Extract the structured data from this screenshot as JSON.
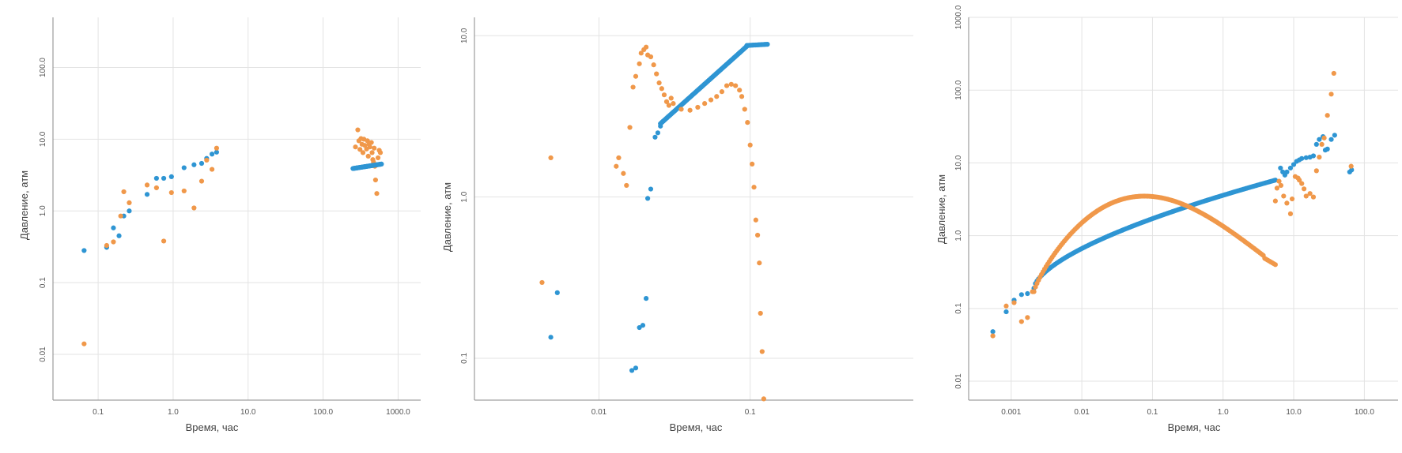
{
  "colors": {
    "series1": "#2e95d3",
    "series2": "#f0984a",
    "grid": "#e3e3e3",
    "axis": "#888888"
  },
  "chart_data": [
    {
      "type": "scatter",
      "xlabel": "Время, час",
      "ylabel": "Давление, атм",
      "x_scale": "log",
      "y_scale": "log",
      "xlim": [
        0.025,
        2000
      ],
      "ylim": [
        0.0023,
        500
      ],
      "x_ticks": [
        0.1,
        1,
        10,
        100,
        1000
      ],
      "x_tick_labels": [
        "0.1",
        "1.0",
        "10.0",
        "100.0",
        "1000.0"
      ],
      "y_ticks": [
        0.01,
        0.1,
        1,
        10,
        100
      ],
      "y_tick_labels": [
        "0.01",
        "0.1",
        "1.0",
        "10.0",
        "100.0"
      ],
      "grid": true,
      "series": [
        {
          "color": "#2e95d3",
          "x": [
            0.065,
            0.13,
            0.16,
            0.19,
            0.22,
            0.26,
            0.45,
            0.6,
            0.75,
            0.95,
            1.4,
            1.9,
            2.4,
            2.8,
            3.3,
            3.8
          ],
          "y": [
            0.28,
            0.31,
            0.58,
            0.45,
            0.85,
            1.0,
            1.7,
            2.85,
            2.85,
            3.0,
            4.0,
            4.4,
            4.6,
            5.4,
            6.2,
            6.6
          ]
        },
        {
          "color": "#f0984a",
          "x": [
            0.065,
            0.13,
            0.16,
            0.2,
            0.22,
            0.26,
            0.45,
            0.6,
            0.75,
            0.95,
            1.4,
            1.9,
            2.4,
            2.8,
            3.3,
            3.8,
            270,
            290,
            300,
            310,
            320,
            330,
            340,
            350,
            360,
            380,
            390,
            400,
            410,
            420,
            440,
            450,
            460,
            470,
            480,
            490,
            500,
            520,
            540,
            560,
            580
          ],
          "y": [
            0.014,
            0.33,
            0.37,
            0.85,
            1.85,
            1.3,
            2.3,
            2.1,
            0.38,
            1.8,
            1.9,
            1.1,
            2.6,
            5.1,
            3.8,
            7.5,
            7.8,
            13.5,
            9.5,
            7.2,
            10.2,
            8.5,
            6.5,
            10,
            8.2,
            7.3,
            9.5,
            5.8,
            8.5,
            7.8,
            9,
            6.5,
            5.2,
            4.8,
            7.5,
            4.2,
            2.7,
            1.75,
            5.5,
            7,
            6.5
          ]
        },
        {
          "color": "#2e95d3",
          "x_from": 250,
          "x_to": 600,
          "y_from": 3.9,
          "y_to": 4.5,
          "points": 60
        }
      ]
    },
    {
      "type": "scatter",
      "xlabel": "Время, час",
      "ylabel": "Давление, атм",
      "x_scale": "log",
      "y_scale": "log",
      "xlim": [
        0.0015,
        1.2
      ],
      "ylim": [
        0.055,
        13
      ],
      "x_ticks": [
        0.01,
        0.1
      ],
      "x_tick_labels": [
        "0.01",
        "0.1"
      ],
      "y_ticks": [
        0.1,
        1,
        10
      ],
      "y_tick_labels": [
        "0.1",
        "1.0",
        "10.0"
      ],
      "grid": true,
      "series": [
        {
          "color": "#2e95d3",
          "x": [
            0.0048,
            0.0053,
            0.0165,
            0.0175,
            0.0185,
            0.0195,
            0.0205,
            0.021,
            0.022,
            0.0235,
            0.0245,
            0.0255
          ],
          "y": [
            0.135,
            0.255,
            0.084,
            0.087,
            0.155,
            0.16,
            0.235,
            0.98,
            1.12,
            2.35,
            2.5,
            2.75
          ]
        },
        {
          "color": "#2e95d3",
          "x_from": 0.0255,
          "x_to": 0.095,
          "y_from": 2.85,
          "y_to": 8.6,
          "points": 90
        },
        {
          "color": "#2e95d3",
          "x_from": 0.095,
          "x_to": 0.13,
          "y_from": 8.7,
          "y_to": 8.85,
          "points": 20
        },
        {
          "color": "#f0984a",
          "x": [
            0.0042,
            0.0048,
            0.013,
            0.0135,
            0.0145,
            0.0152,
            0.016,
            0.0168,
            0.0175,
            0.0185,
            0.019,
            0.0198,
            0.0205,
            0.021,
            0.022,
            0.023,
            0.024,
            0.025,
            0.026,
            0.027,
            0.028,
            0.029,
            0.03
          ],
          "y": [
            0.295,
            1.75,
            1.55,
            1.75,
            1.4,
            1.18,
            2.7,
            4.8,
            5.6,
            6.7,
            7.8,
            8.2,
            8.5,
            7.6,
            7.4,
            6.6,
            5.8,
            5.1,
            4.7,
            4.3,
            3.9,
            3.7,
            4.1
          ]
        },
        {
          "color": "#f0984a",
          "x": [
            0.031,
            0.035,
            0.04,
            0.045,
            0.05,
            0.055,
            0.06,
            0.065,
            0.07,
            0.075,
            0.08,
            0.085,
            0.088,
            0.092,
            0.096,
            0.1,
            0.103,
            0.106,
            0.109,
            0.112,
            0.115,
            0.117,
            0.12,
            0.123,
            0.125
          ],
          "y": [
            3.8,
            3.5,
            3.45,
            3.6,
            3.8,
            4.0,
            4.2,
            4.5,
            4.9,
            5.0,
            4.9,
            4.6,
            4.2,
            3.5,
            2.9,
            2.1,
            1.6,
            1.15,
            0.72,
            0.58,
            0.39,
            0.19,
            0.11,
            0.056,
            0.05
          ]
        }
      ]
    },
    {
      "type": "scatter",
      "xlabel": "Время, час",
      "ylabel": "Давление, атм",
      "x_scale": "log",
      "y_scale": "log",
      "xlim": [
        0.00025,
        300
      ],
      "ylim": [
        0.0055,
        1000
      ],
      "x_ticks": [
        0.001,
        0.01,
        0.1,
        1,
        10,
        100
      ],
      "x_tick_labels": [
        "0.001",
        "0.01",
        "0.1",
        "1.0",
        "10.0",
        "100.0"
      ],
      "y_ticks": [
        0.01,
        0.1,
        1,
        10,
        100,
        1000
      ],
      "y_tick_labels": [
        "0.01",
        "0.1",
        "1.0",
        "10.0",
        "100.0",
        "1000.0"
      ],
      "grid": true,
      "series": [
        {
          "color": "#2e95d3",
          "x": [
            0.00055,
            0.00085,
            0.0011,
            0.0014,
            0.0017
          ],
          "y": [
            0.048,
            0.09,
            0.13,
            0.155,
            0.16
          ]
        },
        {
          "color": "#2e95d3",
          "x_from": 0.0021,
          "x_to": 5.5,
          "y_from": 0.19,
          "y_to": 5.8,
          "points": 160,
          "shape": "concave"
        },
        {
          "color": "#2e95d3",
          "x": [
            6.5,
            7,
            7.5,
            8,
            9,
            10,
            11,
            12,
            13,
            15,
            17,
            19,
            21,
            23,
            26,
            28,
            30,
            34,
            38,
            62,
            66
          ],
          "y": [
            8.5,
            7.5,
            6.8,
            7.5,
            8.5,
            9.5,
            10.5,
            11,
            11.5,
            11.8,
            12,
            12.5,
            18,
            21,
            23,
            15,
            15.5,
            21,
            24,
            7.5,
            8
          ]
        },
        {
          "color": "#f0984a",
          "x": [
            0.00055,
            0.00085,
            0.0011,
            0.0014,
            0.0017,
            0.002
          ],
          "y": [
            0.042,
            0.108,
            0.12,
            0.066,
            0.075,
            0.17
          ]
        },
        {
          "color": "#f0984a",
          "x_from": 0.0021,
          "x_to": 5.5,
          "y_from": 0.17,
          "y_to": 0.4,
          "points": 160,
          "shape": "hump"
        },
        {
          "color": "#f0984a",
          "x": [
            5.5,
            5.8,
            6.2,
            6.6,
            7.2,
            8,
            9,
            9.5,
            10.5,
            11.5,
            12,
            13,
            14,
            15,
            17,
            19,
            21,
            23,
            25,
            27,
            30,
            34,
            37,
            65
          ],
          "y": [
            3.0,
            4.5,
            5.6,
            4.9,
            3.5,
            2.8,
            2.0,
            3.2,
            6.5,
            6.2,
            5.8,
            5.2,
            4.4,
            3.5,
            3.8,
            3.4,
            7.8,
            12,
            18,
            22,
            45,
            88,
            170,
            9
          ]
        }
      ]
    }
  ]
}
